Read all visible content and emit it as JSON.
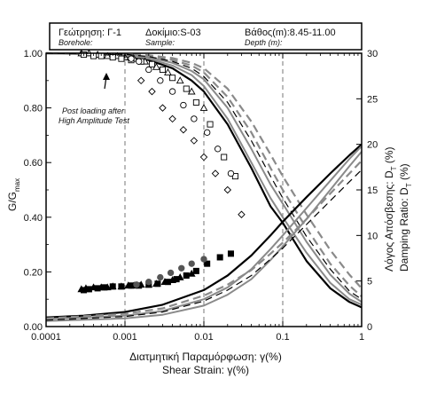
{
  "header": {
    "borehole_gr": "Γεώτρηση: Γ-1",
    "borehole_en": "Borehole:",
    "sample_gr": "Δοκίμιο:S-03",
    "sample_en": "Sample:",
    "depth_gr": "Βάθος(m):8.45-11.00",
    "depth_en": "Depth (m):"
  },
  "chart_data": {
    "type": "line",
    "x_scale": "log",
    "xlim": [
      0.0001,
      1
    ],
    "ylim": [
      0,
      1.0
    ],
    "y2lim": [
      0,
      30
    ],
    "xticks": [
      "0.0001",
      "0.001",
      "0.01",
      "0.1",
      "1"
    ],
    "yticks": [
      "0.00",
      "0.20",
      "0.40",
      "0.60",
      "0.80",
      "1.00"
    ],
    "y2ticks": [
      "0",
      "5",
      "10",
      "15",
      "20",
      "25",
      "30"
    ],
    "xlabel_gr": "Διατμητική Παραμόρφωση: γ(%)",
    "xlabel_en": "Shear Strain: γ(%)",
    "ylabel_main": "G/G",
    "ylabel_sub": "max",
    "y2label_gr": "Λόγος Απόσβεσης: D",
    "y2label_en": "Damping Ratio: D",
    "y2label_sub": "T",
    "y2label_unit": " (%)",
    "annotation_line1": "Post loading after",
    "annotation_line2": "High Amplitude Test",
    "grid": "dashed vertical at decades",
    "modulus_curves": [
      {
        "style": "solid-black",
        "x": [
          0.0001,
          0.0003,
          0.001,
          0.002,
          0.004,
          0.007,
          0.01,
          0.02,
          0.04,
          0.07,
          0.1,
          0.2,
          0.4,
          0.7,
          1.0
        ],
        "y": [
          1.0,
          0.998,
          0.99,
          0.975,
          0.945,
          0.9,
          0.86,
          0.74,
          0.58,
          0.44,
          0.38,
          0.24,
          0.14,
          0.09,
          0.07
        ]
      },
      {
        "style": "solid-gray",
        "x": [
          0.0001,
          0.001,
          0.002,
          0.004,
          0.007,
          0.01,
          0.02,
          0.04,
          0.07,
          0.1,
          0.2,
          0.4,
          0.7,
          1.0
        ],
        "y": [
          1.0,
          0.992,
          0.98,
          0.955,
          0.92,
          0.88,
          0.76,
          0.6,
          0.47,
          0.4,
          0.27,
          0.16,
          0.1,
          0.08
        ]
      },
      {
        "style": "solid-gray",
        "x": [
          0.0001,
          0.001,
          0.002,
          0.004,
          0.007,
          0.01,
          0.02,
          0.04,
          0.07,
          0.1,
          0.2,
          0.4,
          0.7,
          1.0
        ],
        "y": [
          1.0,
          0.995,
          0.985,
          0.965,
          0.935,
          0.905,
          0.8,
          0.65,
          0.52,
          0.45,
          0.31,
          0.19,
          0.12,
          0.09
        ]
      },
      {
        "style": "dashed-gray",
        "x": [
          0.0001,
          0.001,
          0.002,
          0.004,
          0.007,
          0.01,
          0.02,
          0.04,
          0.07,
          0.1,
          0.2,
          0.4,
          0.7,
          1.0
        ],
        "y": [
          1.0,
          0.997,
          0.99,
          0.975,
          0.955,
          0.93,
          0.84,
          0.71,
          0.58,
          0.5,
          0.36,
          0.23,
          0.15,
          0.11
        ]
      },
      {
        "style": "dashed-gray",
        "x": [
          0.0001,
          0.001,
          0.002,
          0.004,
          0.007,
          0.01,
          0.02,
          0.04,
          0.07,
          0.1,
          0.2,
          0.4,
          0.7,
          1.0
        ],
        "y": [
          1.0,
          0.998,
          0.993,
          0.982,
          0.965,
          0.945,
          0.87,
          0.75,
          0.63,
          0.55,
          0.41,
          0.28,
          0.19,
          0.14
        ]
      },
      {
        "style": "dashed-black",
        "x": [
          0.0001,
          0.001,
          0.002,
          0.004,
          0.007,
          0.01,
          0.02,
          0.04,
          0.07,
          0.1,
          0.2,
          0.4,
          0.7,
          1.0
        ],
        "y": [
          1.0,
          0.996,
          0.988,
          0.97,
          0.945,
          0.915,
          0.82,
          0.68,
          0.55,
          0.47,
          0.33,
          0.21,
          0.13,
          0.1
        ]
      }
    ],
    "damping_curves": [
      {
        "style": "solid-black",
        "x": [
          0.0001,
          0.0003,
          0.001,
          0.003,
          0.01,
          0.02,
          0.04,
          0.07,
          0.1,
          0.2,
          0.4,
          0.7,
          1.0
        ],
        "y": [
          1.0,
          1.2,
          1.6,
          2.4,
          4.0,
          5.6,
          7.8,
          10.0,
          11.5,
          14.2,
          16.8,
          18.8,
          20.0
        ]
      },
      {
        "style": "solid-gray",
        "x": [
          0.0001,
          0.001,
          0.003,
          0.01,
          0.02,
          0.04,
          0.07,
          0.1,
          0.2,
          0.4,
          0.7,
          1.0
        ],
        "y": [
          0.8,
          1.2,
          1.7,
          3.0,
          4.3,
          6.3,
          8.5,
          10.0,
          13.0,
          16.0,
          18.4,
          19.8
        ]
      },
      {
        "style": "solid-gray",
        "x": [
          0.0001,
          0.001,
          0.003,
          0.01,
          0.02,
          0.04,
          0.07,
          0.1,
          0.2,
          0.4,
          0.7,
          1.0
        ],
        "y": [
          0.6,
          0.9,
          1.3,
          2.3,
          3.5,
          5.2,
          7.3,
          8.8,
          11.8,
          15.0,
          17.6,
          19.2
        ]
      },
      {
        "style": "dashed-gray",
        "x": [
          0.0001,
          0.001,
          0.003,
          0.01,
          0.02,
          0.04,
          0.07,
          0.1,
          0.2,
          0.4,
          0.7,
          1.0
        ],
        "y": [
          0.9,
          1.4,
          2.0,
          3.4,
          4.6,
          6.2,
          8.0,
          9.2,
          11.8,
          14.6,
          16.8,
          18.2
        ]
      },
      {
        "style": "dashed-black",
        "x": [
          0.0001,
          0.001,
          0.003,
          0.01,
          0.02,
          0.04,
          0.07,
          0.1,
          0.2,
          0.4,
          0.7,
          1.0
        ],
        "y": [
          0.7,
          1.1,
          1.6,
          2.8,
          4.0,
          5.6,
          7.4,
          8.6,
          11.2,
          13.8,
          15.9,
          17.2
        ]
      }
    ],
    "modulus_points": [
      {
        "marker": "triangle",
        "x": [
          0.00028,
          0.00035,
          0.00045,
          0.0006,
          0.0008,
          0.001,
          0.0013,
          0.0018,
          0.0025,
          0.0035,
          0.005,
          0.007,
          0.01
        ],
        "y": [
          1.0,
          1.0,
          0.995,
          0.99,
          0.99,
          0.985,
          0.98,
          0.97,
          0.95,
          0.93,
          0.9,
          0.86,
          0.8
        ]
      },
      {
        "marker": "square",
        "x": [
          0.0003,
          0.0004,
          0.0005,
          0.0007,
          0.0009,
          0.0012,
          0.0016,
          0.0022,
          0.003,
          0.004,
          0.006,
          0.008,
          0.012,
          0.018,
          0.025
        ],
        "y": [
          0.995,
          0.99,
          0.99,
          0.985,
          0.98,
          0.975,
          0.97,
          0.96,
          0.94,
          0.91,
          0.87,
          0.82,
          0.74,
          0.62,
          0.55
        ]
      },
      {
        "marker": "circle",
        "x": [
          0.0012,
          0.0015,
          0.002,
          0.0028,
          0.004,
          0.0055,
          0.0075,
          0.011,
          0.015,
          0.022
        ],
        "y": [
          0.98,
          0.97,
          0.94,
          0.9,
          0.86,
          0.81,
          0.76,
          0.71,
          0.65,
          0.56
        ]
      },
      {
        "marker": "diamond",
        "x": [
          0.0016,
          0.0022,
          0.003,
          0.004,
          0.0055,
          0.0075,
          0.01,
          0.014,
          0.02,
          0.03
        ],
        "y": [
          0.9,
          0.86,
          0.8,
          0.76,
          0.72,
          0.68,
          0.62,
          0.56,
          0.5,
          0.41
        ]
      }
    ],
    "damping_points": [
      {
        "marker": "filled-triangle",
        "x": [
          0.00028,
          0.00032,
          0.0004,
          0.0005,
          0.0006,
          0.0007,
          0.0009,
          0.0011,
          0.0013,
          0.0016,
          0.002,
          0.0025,
          0.0032,
          0.004,
          0.005,
          0.007
        ],
        "y": [
          4.1,
          4.2,
          4.3,
          4.3,
          4.3,
          4.4,
          4.4,
          4.5,
          4.5,
          4.6,
          4.6,
          4.7,
          4.9,
          5.1,
          5.4,
          5.8
        ]
      },
      {
        "marker": "filled-square",
        "x": [
          0.0003,
          0.00035,
          0.00045,
          0.00055,
          0.0007,
          0.0009,
          0.0012,
          0.0015,
          0.002,
          0.0026,
          0.0035,
          0.0045,
          0.006,
          0.008,
          0.011,
          0.016,
          0.022
        ],
        "y": [
          4.0,
          4.1,
          4.2,
          4.3,
          4.4,
          4.4,
          4.5,
          4.5,
          4.6,
          4.7,
          4.9,
          5.2,
          5.6,
          6.1,
          6.9,
          7.6,
          8.0
        ]
      },
      {
        "marker": "filled-circle",
        "x": [
          0.0014,
          0.002,
          0.0028,
          0.0038,
          0.0052,
          0.007,
          0.01
        ],
        "y": [
          4.6,
          4.9,
          5.4,
          5.9,
          6.4,
          6.9,
          7.4
        ]
      }
    ]
  }
}
